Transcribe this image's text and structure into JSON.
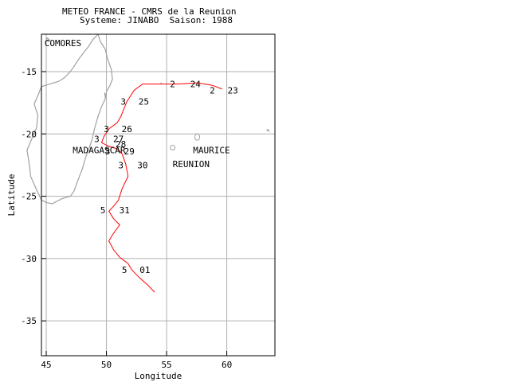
{
  "header": {
    "line1": "METEO FRANCE - CMRS de la Reunion",
    "line2": "Systeme: JINABO  Saison: 1988"
  },
  "axes": {
    "xlabel": "Longitude",
    "ylabel": "Latitude",
    "xlim": [
      44.6,
      64.0
    ],
    "ylim": [
      -37.8,
      -12.0
    ],
    "xticks": [
      45,
      50,
      55,
      60
    ],
    "yticks": [
      -15,
      -20,
      -25,
      -30,
      -35
    ],
    "xticklabels": [
      "45",
      "50",
      "55",
      "60"
    ],
    "yticklabels": [
      "-15",
      "-20",
      "-25",
      "-30",
      "-35"
    ],
    "grid": true
  },
  "places": [
    {
      "id": "comores",
      "label": "COMORES",
      "lon": 44.85,
      "lat": -12.7
    },
    {
      "id": "madagascar",
      "label": "MADAGASCAR",
      "lon": 47.2,
      "lat": -21.3
    },
    {
      "id": "maurice",
      "label": "MAURICE",
      "lon": 57.2,
      "lat": -21.3
    },
    {
      "id": "reunion",
      "label": "REUNION",
      "lon": 55.5,
      "lat": -22.4
    }
  ],
  "colors": {
    "track": "#ff0000",
    "coast": "#a0a0a0",
    "grid": "#b0b0b0",
    "frame": "#000000"
  },
  "chart_data": {
    "type": "track",
    "xlabel": "Longitude",
    "ylabel": "Latitude",
    "track": [
      {
        "lon": 59.6,
        "lat": -16.4
      },
      {
        "lon": 58.8,
        "lat": -16.1
      },
      {
        "lon": 57.6,
        "lat": -15.9
      },
      {
        "lon": 55.9,
        "lat": -16.0
      },
      {
        "lon": 54.0,
        "lat": -16.0
      },
      {
        "lon": 53.0,
        "lat": -16.0
      },
      {
        "lon": 52.3,
        "lat": -16.5
      },
      {
        "lon": 51.7,
        "lat": -17.4
      },
      {
        "lon": 51.2,
        "lat": -18.6
      },
      {
        "lon": 50.9,
        "lat": -19.1
      },
      {
        "lon": 50.2,
        "lat": -19.6
      },
      {
        "lon": 49.8,
        "lat": -20.2
      },
      {
        "lon": 49.6,
        "lat": -20.7
      },
      {
        "lon": 50.2,
        "lat": -21.0
      },
      {
        "lon": 50.9,
        "lat": -21.2
      },
      {
        "lon": 51.3,
        "lat": -21.6
      },
      {
        "lon": 51.6,
        "lat": -22.4
      },
      {
        "lon": 51.8,
        "lat": -23.4
      },
      {
        "lon": 51.3,
        "lat": -24.4
      },
      {
        "lon": 51.0,
        "lat": -25.3
      },
      {
        "lon": 50.6,
        "lat": -25.8
      },
      {
        "lon": 50.2,
        "lat": -26.2
      },
      {
        "lon": 50.6,
        "lat": -26.8
      },
      {
        "lon": 51.1,
        "lat": -27.3
      },
      {
        "lon": 50.5,
        "lat": -28.1
      },
      {
        "lon": 50.2,
        "lat": -28.6
      },
      {
        "lon": 50.6,
        "lat": -29.3
      },
      {
        "lon": 51.1,
        "lat": -29.9
      },
      {
        "lon": 51.8,
        "lat": -30.4
      },
      {
        "lon": 52.1,
        "lat": -30.9
      },
      {
        "lon": 52.7,
        "lat": -31.5
      },
      {
        "lon": 53.4,
        "lat": -32.1
      },
      {
        "lon": 54.0,
        "lat": -32.7
      }
    ],
    "intensity_labels": [
      {
        "text": "2",
        "lon": 55.5,
        "lat": -16.0
      },
      {
        "text": "2",
        "lon": 58.8,
        "lat": -16.5
      },
      {
        "text": "3",
        "lon": 51.4,
        "lat": -17.4
      },
      {
        "text": "3",
        "lon": 50.0,
        "lat": -19.6
      },
      {
        "text": "3",
        "lon": 49.2,
        "lat": -20.4
      },
      {
        "text": "3",
        "lon": 50.1,
        "lat": -21.4
      },
      {
        "text": "3",
        "lon": 51.2,
        "lat": -22.5
      },
      {
        "text": "5",
        "lon": 49.7,
        "lat": -26.1
      },
      {
        "text": "5",
        "lon": 51.5,
        "lat": -30.9
      }
    ],
    "date_labels": [
      {
        "text": "24",
        "lon": 57.4,
        "lat": -16.0
      },
      {
        "text": "23",
        "lon": 60.5,
        "lat": -16.5
      },
      {
        "text": "25",
        "lon": 53.1,
        "lat": -17.4
      },
      {
        "text": "26",
        "lon": 51.7,
        "lat": -19.6
      },
      {
        "text": "27",
        "lon": 51.0,
        "lat": -20.4
      },
      {
        "text": "28",
        "lon": 51.2,
        "lat": -20.8
      },
      {
        "text": "29",
        "lon": 51.9,
        "lat": -21.4
      },
      {
        "text": "30",
        "lon": 53.0,
        "lat": -22.5
      },
      {
        "text": "31",
        "lon": 51.5,
        "lat": -26.1
      },
      {
        "text": "01",
        "lon": 53.2,
        "lat": -30.9
      }
    ]
  }
}
